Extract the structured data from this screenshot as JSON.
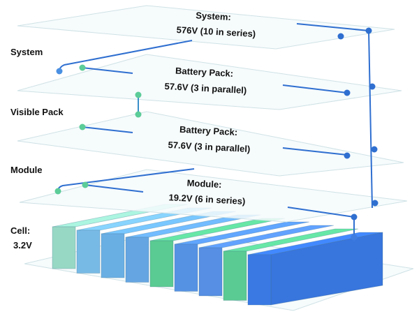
{
  "side_labels": {
    "system": "System",
    "visible_pack": "Visible Pack",
    "module": "Module",
    "cell_line1": "Cell:",
    "cell_line2": "3.2V"
  },
  "layers": [
    {
      "line1": "System:",
      "line2": "576V (10 in series)"
    },
    {
      "line1": "Battery Pack:",
      "line2": "57.6V (3 in parallel)"
    },
    {
      "line1": "Battery Pack:",
      "line2": "57.6V (3 in parallel)"
    },
    {
      "line1": "Module:",
      "line2": "19.2V (6 in series)"
    }
  ],
  "colors": {
    "wire": "#2f6fd0",
    "dot_blue": "#2f6fd0",
    "dot_green": "#5ccc98",
    "plane": "#f4fafb"
  },
  "cell_colors": [
    "#9fe3cf",
    "#7ec4f2",
    "#70b8f0",
    "#6aaeee",
    "#5fd69a",
    "#5a9af0",
    "#5b96ef",
    "#5fd69a",
    "#3d7ff0"
  ]
}
